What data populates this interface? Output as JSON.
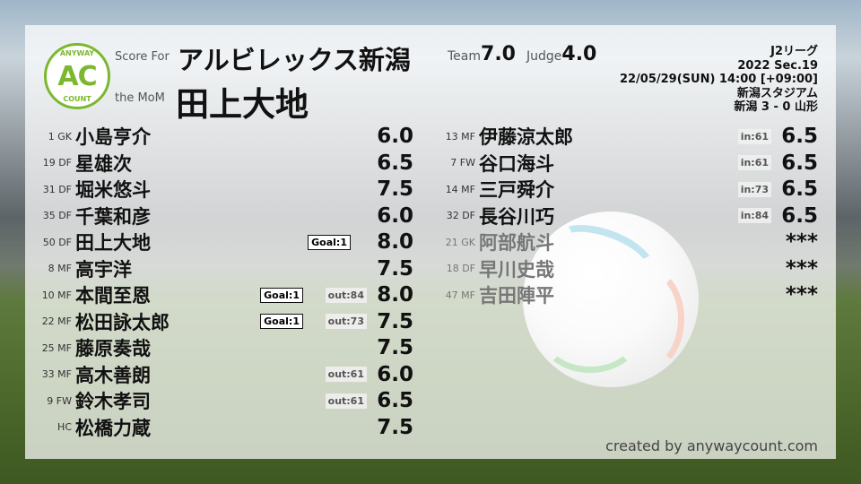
{
  "header": {
    "score_for_label": "Score For",
    "mom_label": "the MoM",
    "team": "アルビレックス新潟",
    "mom": "田上大地",
    "team_score_label": "Team",
    "team_score": "7.0",
    "judge_label": "Judge",
    "judge_score": "4.0",
    "logo": {
      "top": "ANYWAY",
      "mark": "AC",
      "bottom": "COUNT"
    }
  },
  "match": {
    "league": "J2リーグ",
    "section": "2022 Sec.19",
    "datetime": "22/05/29(SUN) 14:00 [+09:00]",
    "stadium": "新潟スタジアム",
    "result": "新潟 3 - 0 山形"
  },
  "starters": [
    {
      "num": "1 GK",
      "name": "小島亨介",
      "score": "6.0"
    },
    {
      "num": "19 DF",
      "name": "星雄次",
      "score": "6.5"
    },
    {
      "num": "31 DF",
      "name": "堀米悠斗",
      "score": "7.5"
    },
    {
      "num": "35 DF",
      "name": "千葉和彦",
      "score": "6.0"
    },
    {
      "num": "50 DF",
      "name": "田上大地",
      "score": "8.0",
      "goal": "Goal:1"
    },
    {
      "num": "8 MF",
      "name": "高宇洋",
      "score": "7.5"
    },
    {
      "num": "10 MF",
      "name": "本間至恩",
      "score": "8.0",
      "goal": "Goal:1",
      "sub": "out:84"
    },
    {
      "num": "22 MF",
      "name": "松田詠太郎",
      "score": "7.5",
      "goal": "Goal:1",
      "sub": "out:73"
    },
    {
      "num": "25 MF",
      "name": "藤原奏哉",
      "score": "7.5"
    },
    {
      "num": "33 MF",
      "name": "高木善朗",
      "score": "6.0",
      "sub": "out:61"
    },
    {
      "num": "9 FW",
      "name": "鈴木孝司",
      "score": "6.5",
      "sub": "out:61"
    },
    {
      "num": "HC",
      "name": "松橋力蔵",
      "score": "7.5"
    }
  ],
  "subs": [
    {
      "num": "13 MF",
      "name": "伊藤涼太郎",
      "score": "6.5",
      "sub": "in:61"
    },
    {
      "num": "7 FW",
      "name": "谷口海斗",
      "score": "6.5",
      "sub": "in:61"
    },
    {
      "num": "14 MF",
      "name": "三戸舜介",
      "score": "6.5",
      "sub": "in:73"
    },
    {
      "num": "32 DF",
      "name": "長谷川巧",
      "score": "6.5",
      "sub": "in:84"
    },
    {
      "num": "21 GK",
      "name": "阿部航斗",
      "score": "***",
      "dim": true
    },
    {
      "num": "18 DF",
      "name": "早川史哉",
      "score": "***",
      "dim": true
    },
    {
      "num": "47 MF",
      "name": "吉田陣平",
      "score": "***",
      "dim": true
    }
  ],
  "footer": {
    "credit": "created by anywaycount.com"
  },
  "colors": {
    "logo_green": "#7cb82f"
  }
}
